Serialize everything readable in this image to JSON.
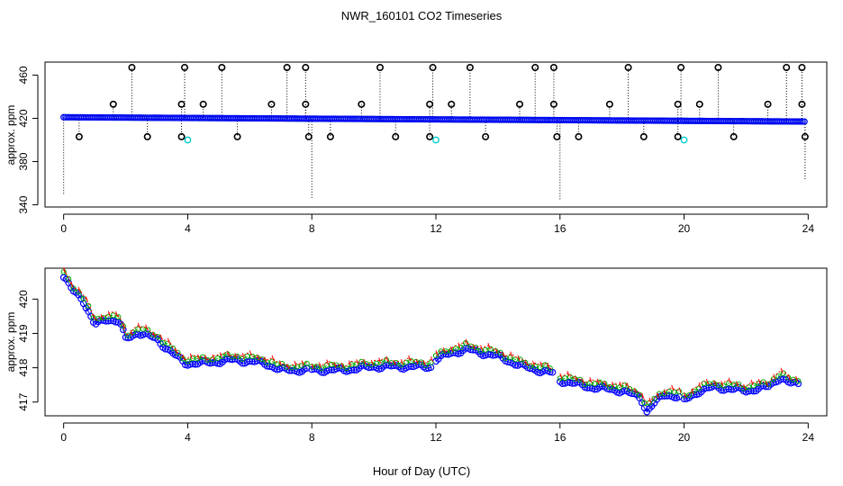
{
  "figure": {
    "title": "NWR_160101  CO2 Timeseries",
    "xlabel": "Hour of Day (UTC)"
  },
  "chart_data": [
    {
      "type": "scatter",
      "name": "top-panel",
      "ylabel": "approx. ppm",
      "xlim": [
        -0.6,
        24.6
      ],
      "ylim": [
        338,
        472
      ],
      "x_ticks": [
        0,
        4,
        8,
        12,
        16,
        20,
        24
      ],
      "y_ticks": [
        340,
        380,
        420,
        460
      ],
      "baseline_start": 421.0,
      "baseline_end": 417.0,
      "outliers_high": [
        {
          "x": 1.6,
          "y": 433
        },
        {
          "x": 2.2,
          "y": 467
        },
        {
          "x": 3.8,
          "y": 433
        },
        {
          "x": 3.9,
          "y": 467
        },
        {
          "x": 4.5,
          "y": 433
        },
        {
          "x": 5.1,
          "y": 467
        },
        {
          "x": 6.7,
          "y": 433
        },
        {
          "x": 7.2,
          "y": 467
        },
        {
          "x": 7.8,
          "y": 467
        },
        {
          "x": 7.8,
          "y": 433
        },
        {
          "x": 9.6,
          "y": 433
        },
        {
          "x": 10.2,
          "y": 467
        },
        {
          "x": 11.8,
          "y": 433
        },
        {
          "x": 11.9,
          "y": 467
        },
        {
          "x": 12.5,
          "y": 433
        },
        {
          "x": 13.1,
          "y": 467
        },
        {
          "x": 14.7,
          "y": 433
        },
        {
          "x": 15.2,
          "y": 467
        },
        {
          "x": 15.8,
          "y": 467
        },
        {
          "x": 15.8,
          "y": 433
        },
        {
          "x": 17.6,
          "y": 433
        },
        {
          "x": 18.2,
          "y": 467
        },
        {
          "x": 19.8,
          "y": 433
        },
        {
          "x": 19.9,
          "y": 467
        },
        {
          "x": 20.5,
          "y": 433
        },
        {
          "x": 21.1,
          "y": 467
        },
        {
          "x": 22.7,
          "y": 433
        },
        {
          "x": 23.3,
          "y": 467
        },
        {
          "x": 23.8,
          "y": 467
        },
        {
          "x": 23.8,
          "y": 433
        }
      ],
      "outliers_low": [
        {
          "x": 0.5,
          "y": 403
        },
        {
          "x": 2.7,
          "y": 403
        },
        {
          "x": 3.8,
          "y": 403
        },
        {
          "x": 5.6,
          "y": 403
        },
        {
          "x": 7.9,
          "y": 403
        },
        {
          "x": 8.6,
          "y": 403
        },
        {
          "x": 10.7,
          "y": 403
        },
        {
          "x": 11.8,
          "y": 403
        },
        {
          "x": 13.6,
          "y": 403
        },
        {
          "x": 15.9,
          "y": 403
        },
        {
          "x": 16.6,
          "y": 403
        },
        {
          "x": 18.7,
          "y": 403
        },
        {
          "x": 19.8,
          "y": 403
        },
        {
          "x": 21.6,
          "y": 403
        },
        {
          "x": 23.9,
          "y": 403
        }
      ],
      "cyan_points": [
        {
          "x": 4.0,
          "y": 400
        },
        {
          "x": 12.0,
          "y": 400
        },
        {
          "x": 20.0,
          "y": 400
        }
      ],
      "spikes_down": [
        {
          "x": 0.0,
          "y": 350
        },
        {
          "x": 8.0,
          "y": 345
        },
        {
          "x": 16.0,
          "y": 345
        },
        {
          "x": 23.9,
          "y": 362
        }
      ]
    },
    {
      "type": "scatter",
      "name": "bottom-panel",
      "ylabel": "approx. ppm",
      "xlim": [
        -0.6,
        24.6
      ],
      "ylim": [
        416.6,
        420.9
      ],
      "x_ticks": [
        0,
        4,
        8,
        12,
        16,
        20,
        24
      ],
      "y_ticks": [
        417,
        418,
        419,
        420
      ],
      "series": [
        {
          "name": "blue",
          "color": "#0000ff",
          "offset": -0.07
        },
        {
          "name": "green",
          "color": "#00aa00",
          "offset": 0.05
        },
        {
          "name": "red",
          "color": "#ff0000",
          "offset": 0.1
        }
      ],
      "segments": [
        {
          "x": [
            0,
            0.3,
            0.6,
            0.8,
            1.0,
            1.4,
            1.8,
            2.0,
            2.4,
            3.0,
            3.5,
            3.9,
            4.5,
            5.5,
            6.5,
            7.0,
            7.9
          ],
          "y": [
            420.7,
            420.3,
            420.1,
            419.7,
            419.3,
            419.5,
            419.4,
            418.9,
            419.1,
            418.9,
            418.5,
            418.2,
            418.2,
            418.3,
            418.2,
            418.0,
            418.0
          ]
        },
        {
          "x": [
            8.0,
            9.0,
            10.0,
            11.0,
            11.9
          ],
          "y": [
            418.0,
            418.0,
            418.1,
            418.1,
            418.1
          ]
        },
        {
          "x": [
            12.0,
            12.5,
            13.0,
            13.5,
            14.0,
            14.8,
            15.8
          ],
          "y": [
            418.3,
            418.5,
            418.6,
            418.5,
            418.4,
            418.1,
            417.9
          ]
        },
        {
          "x": [
            16.0,
            17.0,
            18.0,
            18.6,
            18.8,
            19.0,
            19.4,
            19.9
          ],
          "y": [
            417.7,
            417.5,
            417.4,
            417.2,
            416.8,
            417.0,
            417.3,
            417.2
          ]
        },
        {
          "x": [
            20.0,
            20.5,
            21.0,
            22.0,
            22.7,
            23.1,
            23.4,
            23.7
          ],
          "y": [
            417.1,
            417.4,
            417.5,
            417.4,
            417.5,
            417.8,
            417.6,
            417.6
          ]
        }
      ]
    }
  ]
}
